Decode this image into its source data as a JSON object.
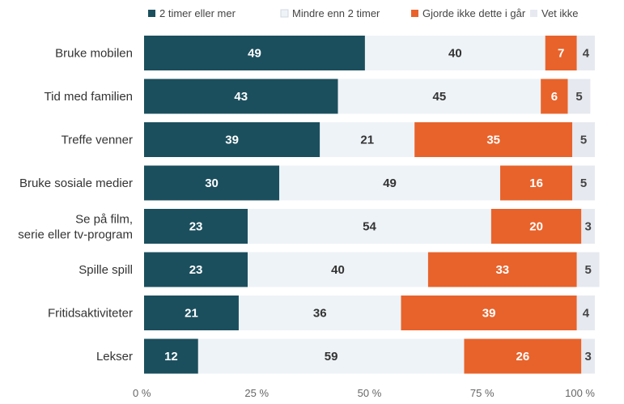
{
  "chart_data": {
    "type": "bar",
    "orientation": "horizontal",
    "stacked": true,
    "categories": [
      "Bruke mobilen",
      "Tid med familien",
      "Treffe venner",
      "Bruke sosiale medier",
      "Se på film, serie eller tv-program",
      "Spille spill",
      "Fritidsaktiviteter",
      "Lekser"
    ],
    "series": [
      {
        "name": "2 timer eller mer",
        "color": "#1b4f5e",
        "label_color": "#ffffff",
        "values": [
          49,
          43,
          39,
          30,
          23,
          23,
          21,
          12
        ]
      },
      {
        "name": "Mindre enn 2 timer",
        "color": "#eef3f7",
        "label_color": "#333333",
        "values": [
          40,
          45,
          21,
          49,
          54,
          40,
          36,
          59
        ]
      },
      {
        "name": "Gjorde ikke dette i går",
        "color": "#e8632b",
        "label_color": "#ffffff",
        "values": [
          7,
          6,
          35,
          16,
          20,
          33,
          39,
          26
        ]
      },
      {
        "name": "Vet ikke",
        "color": "#e6e9ef",
        "label_color": "#444444",
        "values": [
          4,
          5,
          5,
          5,
          3,
          5,
          4,
          3
        ]
      }
    ],
    "x_ticks": [
      "0 %",
      "25 %",
      "50 %",
      "75 %",
      "100 %"
    ],
    "xlim": [
      0,
      100
    ],
    "legend": "top",
    "grid": false
  }
}
